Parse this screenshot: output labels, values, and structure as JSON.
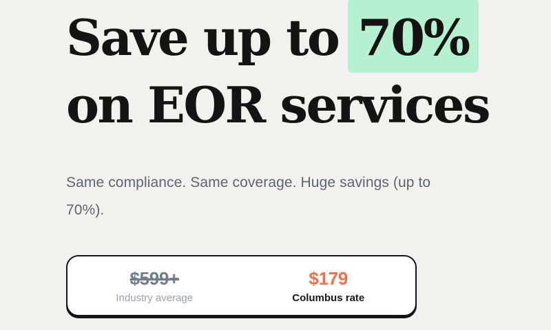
{
  "page": {
    "background_color": "#f2f1ee",
    "text_color": "#161412"
  },
  "hero": {
    "headline": {
      "prefix": "Save up to",
      "highlight": "70%",
      "highlight_color": "#b5f1d0",
      "line2": "on EOR services"
    },
    "subtitle": "Same compliance. Same coverage. Huge savings (up to 70%).",
    "subtitle_color": "#5d6472",
    "pricing_card": {
      "border_color": "#161412",
      "industry": {
        "price": "$599+",
        "price_color": "#747d8f",
        "strikethrough": true,
        "label": "Industry average",
        "label_color": "#9ba1ad"
      },
      "columbus": {
        "price": "$179",
        "price_color": "#ec7049",
        "strikethrough": false,
        "label": "Columbus rate",
        "label_color": "#15171a"
      }
    }
  }
}
